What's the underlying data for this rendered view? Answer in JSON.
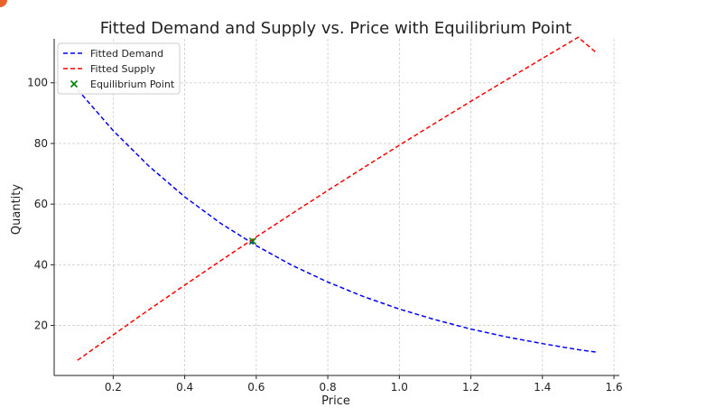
{
  "chart_data": {
    "type": "line",
    "title": "Fitted Demand and Supply vs. Price with Equilibrium Point",
    "xlabel": "Price",
    "ylabel": "Quantity",
    "xlim": [
      0.035,
      1.615
    ],
    "ylim": [
      3.5,
      114.5
    ],
    "xticks": [
      0.2,
      0.4,
      0.6,
      0.8,
      1.0,
      1.2,
      1.4,
      1.6
    ],
    "xtick_labels": [
      "0.2",
      "0.4",
      "0.6",
      "0.8",
      "1.0",
      "1.2",
      "1.4",
      "1.6"
    ],
    "yticks": [
      20,
      40,
      60,
      80,
      100
    ],
    "ytick_labels": [
      "20",
      "40",
      "60",
      "80",
      "100"
    ],
    "grid": true,
    "legend_position": "top-left",
    "series": [
      {
        "name": "Fitted Demand",
        "color": "#0000ff",
        "style": "dashed",
        "x": [
          0.1,
          0.2,
          0.3,
          0.4,
          0.5,
          0.6,
          0.7,
          0.8,
          0.9,
          1.0,
          1.1,
          1.2,
          1.3,
          1.4,
          1.5,
          1.55
        ],
        "y": [
          97.8,
          84.2,
          72.5,
          62.4,
          53.7,
          46.3,
          39.8,
          34.3,
          29.5,
          25.4,
          21.9,
          18.8,
          16.2,
          14.0,
          12.0,
          11.2
        ]
      },
      {
        "name": "Fitted Supply",
        "color": "#ff0000",
        "style": "dashed",
        "x": [
          0.1,
          0.2,
          0.3,
          0.4,
          0.5,
          0.6,
          0.7,
          0.8,
          0.9,
          1.0,
          1.1,
          1.2,
          1.3,
          1.4,
          1.5,
          1.55
        ],
        "y": [
          8.5,
          16.9,
          25.2,
          33.3,
          41.3,
          49.2,
          56.9,
          64.5,
          72.0,
          79.4,
          86.7,
          93.9,
          101.0,
          108.0,
          115.0,
          110.0
        ]
      }
    ],
    "points": [
      {
        "name": "Equilibrium Point",
        "color": "#008000",
        "marker": "x",
        "x": 0.59,
        "y": 47.8
      }
    ]
  }
}
